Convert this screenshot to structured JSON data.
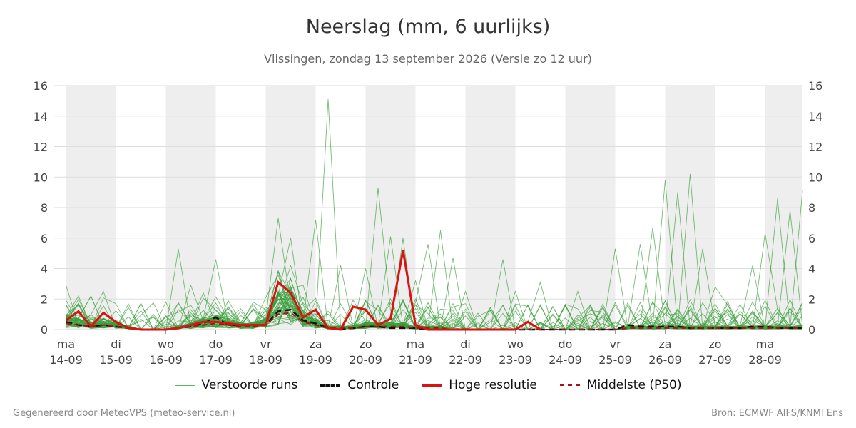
{
  "chart_data": {
    "type": "line",
    "title": "Neerslag (mm, 6 uurlijks)",
    "subtitle": "Vlissingen, zondag 13 september 2026 (Versie zo 12 uur)",
    "ylim": [
      0,
      16
    ],
    "yticks": [
      0,
      2,
      4,
      6,
      8,
      10,
      12,
      14,
      16
    ],
    "x_start_label": "14-09 00:00",
    "step_hours": 6,
    "x_range_steps": [
      -1,
      59
    ],
    "x_tick_labels": [
      {
        "day": "ma",
        "date": "14-09"
      },
      {
        "day": "di",
        "date": "15-09"
      },
      {
        "day": "wo",
        "date": "16-09"
      },
      {
        "day": "do",
        "date": "17-09"
      },
      {
        "day": "vr",
        "date": "18-09"
      },
      {
        "day": "za",
        "date": "19-09"
      },
      {
        "day": "zo",
        "date": "20-09"
      },
      {
        "day": "ma",
        "date": "21-09"
      },
      {
        "day": "di",
        "date": "22-09"
      },
      {
        "day": "wo",
        "date": "23-09"
      },
      {
        "day": "do",
        "date": "24-09"
      },
      {
        "day": "vr",
        "date": "25-09"
      },
      {
        "day": "za",
        "date": "26-09"
      },
      {
        "day": "zo",
        "date": "27-09"
      },
      {
        "day": "ma",
        "date": "28-09"
      }
    ],
    "shaded_days": [
      "14-09",
      "16-09",
      "18-09",
      "20-09",
      "22-09",
      "24-09",
      "26-09",
      "28-09"
    ],
    "grid": true,
    "legend_position": "bottom",
    "hoge_resolutie": [
      0.6,
      1.2,
      0.2,
      1.1,
      0.5,
      0.1,
      0.0,
      0.0,
      0.0,
      0.1,
      0.3,
      0.5,
      0.5,
      0.4,
      0.3,
      0.3,
      0.3,
      3.1,
      2.4,
      0.8,
      1.3,
      0.1,
      0.0,
      1.5,
      1.3,
      0.3,
      0.7,
      5.2,
      0.3,
      0.0,
      0.0,
      0.0,
      0.0,
      0.0,
      0.0,
      0.0,
      0.0,
      0.5,
      0.0
    ],
    "controle": [
      0.5,
      0.3,
      0.2,
      0.3,
      0.2,
      0.1,
      0.0,
      0.0,
      0.0,
      0.1,
      0.2,
      0.4,
      0.8,
      0.3,
      0.3,
      0.3,
      0.3,
      1.2,
      1.3,
      0.6,
      0.4,
      0.1,
      0.0,
      0.1,
      0.2,
      0.2,
      0.1,
      0.1,
      0.1,
      0.0,
      0.0,
      0.0,
      0.0,
      0.0,
      0.0,
      0.0,
      0.0,
      0.0,
      0.0,
      0.0,
      0.0,
      0.0,
      0.0,
      0.0,
      0.0,
      0.3,
      0.2,
      0.2,
      0.2,
      0.2,
      0.1,
      0.1,
      0.1,
      0.1,
      0.1,
      0.2,
      0.2,
      0.1,
      0.1,
      0.1
    ],
    "middelste_p50": [
      0.4,
      0.3,
      0.2,
      0.3,
      0.2,
      0.1,
      0.0,
      0.0,
      0.0,
      0.1,
      0.2,
      0.3,
      0.4,
      0.3,
      0.2,
      0.2,
      0.3,
      1.0,
      1.1,
      0.5,
      0.3,
      0.1,
      0.1,
      0.1,
      0.2,
      0.2,
      0.2,
      0.2,
      0.1,
      0.1,
      0.1,
      0.0,
      0.0,
      0.0,
      0.0,
      0.0,
      0.0,
      0.0,
      0.0,
      0.0,
      0.0,
      0.0,
      0.0,
      0.0,
      0.0,
      0.1,
      0.1,
      0.1,
      0.1,
      0.1,
      0.1,
      0.1,
      0.1,
      0.1,
      0.1,
      0.1,
      0.1,
      0.1,
      0.1,
      0.1
    ],
    "verstoorde_runs_peaks": [
      {
        "x": 0,
        "y": 2.9
      },
      {
        "x": 1,
        "y": 2.2
      },
      {
        "x": 2,
        "y": 2.2
      },
      {
        "x": 3,
        "y": 2.5
      },
      {
        "x": 4,
        "y": 1.7
      },
      {
        "x": 9,
        "y": 5.3
      },
      {
        "x": 10,
        "y": 2.9
      },
      {
        "x": 11,
        "y": 2.4
      },
      {
        "x": 12,
        "y": 4.6
      },
      {
        "x": 13,
        "y": 1.9
      },
      {
        "x": 16,
        "y": 2.1
      },
      {
        "x": 17,
        "y": 7.3
      },
      {
        "x": 18,
        "y": 6.0
      },
      {
        "x": 19,
        "y": 2.1
      },
      {
        "x": 20,
        "y": 7.2
      },
      {
        "x": 21,
        "y": 15.1
      },
      {
        "x": 22,
        "y": 4.2
      },
      {
        "x": 24,
        "y": 4.0
      },
      {
        "x": 25,
        "y": 9.3
      },
      {
        "x": 26,
        "y": 6.1
      },
      {
        "x": 27,
        "y": 6.0
      },
      {
        "x": 28,
        "y": 3.2
      },
      {
        "x": 29,
        "y": 5.6
      },
      {
        "x": 30,
        "y": 6.5
      },
      {
        "x": 31,
        "y": 4.7
      },
      {
        "x": 32,
        "y": 2.5
      },
      {
        "x": 35,
        "y": 4.6
      },
      {
        "x": 36,
        "y": 2.5
      },
      {
        "x": 38,
        "y": 3.1
      },
      {
        "x": 39,
        "y": 1.5
      },
      {
        "x": 41,
        "y": 2.5
      },
      {
        "x": 44,
        "y": 5.3
      },
      {
        "x": 46,
        "y": 5.6
      },
      {
        "x": 47,
        "y": 6.7
      },
      {
        "x": 48,
        "y": 9.8
      },
      {
        "x": 49,
        "y": 9.0
      },
      {
        "x": 50,
        "y": 10.2
      },
      {
        "x": 51,
        "y": 5.3
      },
      {
        "x": 52,
        "y": 2.8
      },
      {
        "x": 55,
        "y": 4.2
      },
      {
        "x": 56,
        "y": 6.3
      },
      {
        "x": 57,
        "y": 8.6
      },
      {
        "x": 58,
        "y": 7.8
      },
      {
        "x": 59,
        "y": 9.1
      }
    ],
    "series": [
      {
        "name": "Verstoorde runs",
        "color": "#3a9e3a",
        "style": "solid-thin"
      },
      {
        "name": "Controle",
        "color": "#111111",
        "style": "dashed"
      },
      {
        "name": "Hoge resolutie",
        "color": "#dd1111",
        "style": "solid-thick"
      },
      {
        "name": "Middelste (P50)",
        "color": "#aa1111",
        "style": "dashed"
      }
    ]
  },
  "footer": {
    "left": "Gegenereerd door MeteoVPS (meteo-service.nl)",
    "right": "Bron: ECMWF AIFS/KNMI Ens"
  },
  "colors": {
    "shade": "#eeeeee",
    "grid": "#dddddd",
    "axis_text": "#444444"
  }
}
